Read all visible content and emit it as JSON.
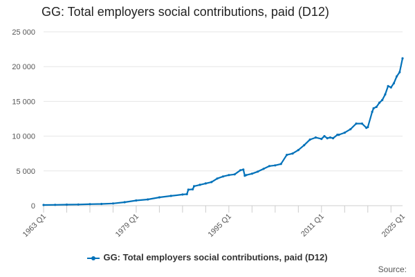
{
  "chart_data": {
    "type": "line",
    "title": "GG: Total employers social contributions, paid (D12)",
    "xlabel": "",
    "ylabel": "",
    "ylim": [
      0,
      25000
    ],
    "yticks": [
      0,
      5000,
      10000,
      15000,
      20000,
      25000
    ],
    "ytick_labels": [
      "0",
      "5 000",
      "10 000",
      "15 000",
      "20 000",
      "25 000"
    ],
    "xtick_labels": [
      "1963 Q1",
      "1979 Q1",
      "1995 Q1",
      "2011 Q1",
      "2025 Q1"
    ],
    "xtick_years": [
      1963,
      1979,
      1995,
      2011,
      2025
    ],
    "grid": true,
    "legend_position": "bottom",
    "series": [
      {
        "name": "GG: Total employers social contributions, paid (D12)",
        "color": "#0071b9",
        "x": [
          1963,
          1965,
          1967,
          1969,
          1971,
          1973,
          1975,
          1977,
          1979,
          1981,
          1983,
          1985,
          1987,
          1987.75,
          1988,
          1988.75,
          1989,
          1990,
          1991,
          1992,
          1993,
          1994,
          1995,
          1996,
          1997,
          1997.5,
          1997.75,
          1998,
          1999,
          2000,
          2001,
          2002,
          2003,
          2004,
          2005,
          2006,
          2007,
          2008,
          2009,
          2010,
          2011,
          2011.5,
          2012,
          2012.5,
          2013,
          2013.75,
          2014,
          2015,
          2016,
          2017,
          2018,
          2018.75,
          2019,
          2019.75,
          2020,
          2020.5,
          2021,
          2021.5,
          2022,
          2022.5,
          2023,
          2023.5,
          2024,
          2024.5,
          2025
        ],
        "y": [
          100,
          120,
          150,
          170,
          220,
          250,
          320,
          500,
          750,
          900,
          1200,
          1400,
          1600,
          1650,
          2300,
          2350,
          2800,
          3000,
          3200,
          3400,
          3900,
          4200,
          4400,
          4500,
          5100,
          5200,
          4300,
          4400,
          4600,
          4900,
          5300,
          5700,
          5800,
          6000,
          7300,
          7500,
          8000,
          8700,
          9500,
          9800,
          9600,
          10000,
          9700,
          9800,
          9700,
          10200,
          10200,
          10500,
          11000,
          11800,
          11800,
          11200,
          11300,
          13500,
          14000,
          14200,
          14800,
          15200,
          16000,
          17200,
          17000,
          17600,
          18600,
          19200,
          21200
        ]
      }
    ]
  },
  "legend": {
    "label": "GG: Total employers social contributions, paid (D12)"
  },
  "source_label": "Source:"
}
